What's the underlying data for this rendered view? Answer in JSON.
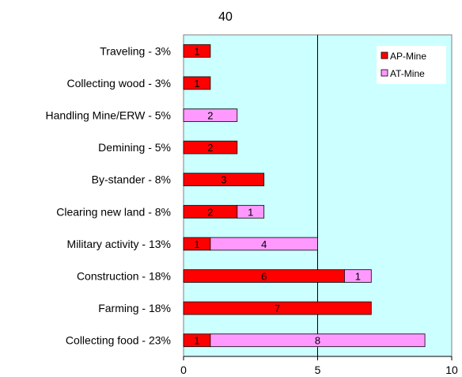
{
  "chart_data": {
    "type": "bar",
    "orientation": "horizontal",
    "stacked": true,
    "title": "40",
    "categories": [
      "Traveling - 3%",
      "Collecting wood - 3%",
      "Handling Mine/ERW - 5%",
      "Demining - 5%",
      "By-stander - 8%",
      "Clearing new land - 8%",
      "Military activity - 13%",
      "Construction - 18%",
      "Farming - 18%",
      "Collecting food - 23%"
    ],
    "series": [
      {
        "name": "AP-Mine",
        "color": "#ff0000",
        "values": [
          1,
          1,
          0,
          2,
          3,
          2,
          1,
          6,
          7,
          1
        ]
      },
      {
        "name": "AT-Mine",
        "color": "#ff99ff",
        "values": [
          0,
          0,
          2,
          0,
          0,
          1,
          4,
          1,
          0,
          8
        ]
      }
    ],
    "xlim": [
      0,
      10
    ],
    "xticks": [
      "0",
      "5",
      "10"
    ],
    "plot_background": "#ccffff",
    "grid_vertical_at": [
      5
    ],
    "legend_position": "top-right"
  }
}
